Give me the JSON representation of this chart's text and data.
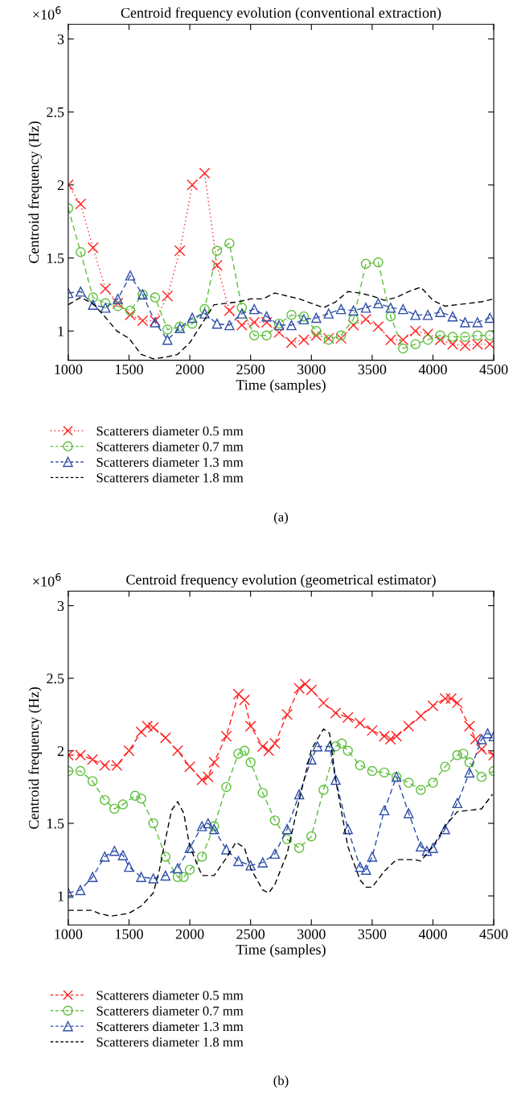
{
  "chart_data": [
    {
      "type": "line",
      "title": "Centroid frequency evolution (conventional extraction)",
      "xlabel": "Time (samples)",
      "ylabel": "Centroid frequency (Hz)",
      "annotations": [
        "×10$^{6}$",
        "(a)"
      ],
      "xlim": [
        1000,
        4500
      ],
      "xticks": [
        1000,
        1500,
        2000,
        2500,
        3000,
        3500,
        4000,
        4500
      ],
      "ylim": [
        0.8,
        3.1
      ],
      "yticks": [
        1,
        1.5,
        2,
        2.5,
        3
      ],
      "grid": false,
      "legend": "bottom",
      "x": [
        1000,
        1102,
        1204,
        1306,
        1408,
        1510,
        1612,
        1714,
        1816,
        1918,
        2020,
        2122,
        2224,
        2326,
        2428,
        2530,
        2632,
        2734,
        2836,
        2938,
        3040,
        3142,
        3244,
        3346,
        3448,
        3550,
        3652,
        3754,
        3856,
        3958,
        4060,
        4162,
        4264,
        4366,
        4468
      ],
      "series": [
        {
          "name": "Scatterers diameter 0.5 mm",
          "color": "#ff2020",
          "marker": "cross",
          "line_style": "dotted",
          "values": [
            2.0,
            1.87,
            1.57,
            1.29,
            1.19,
            1.11,
            1.07,
            1.07,
            1.24,
            1.55,
            2.0,
            2.08,
            1.45,
            1.14,
            1.04,
            1.06,
            1.06,
            0.99,
            0.92,
            0.94,
            0.97,
            0.95,
            0.95,
            1.04,
            1.08,
            1.03,
            0.94,
            0.94,
            1.0,
            0.98,
            0.94,
            0.91,
            0.9,
            0.91,
            0.91
          ]
        },
        {
          "name": "Scatterers diameter 0.7 mm",
          "color": "#5cbf3a",
          "marker": "circle",
          "line_style": "dashed",
          "values": [
            1.84,
            1.54,
            1.23,
            1.19,
            1.17,
            1.14,
            1.25,
            1.23,
            1.01,
            1.03,
            1.05,
            1.15,
            1.55,
            1.6,
            1.16,
            0.97,
            0.97,
            1.05,
            1.11,
            1.1,
            1.0,
            0.94,
            0.97,
            1.08,
            1.46,
            1.47,
            1.1,
            0.88,
            0.91,
            0.94,
            0.97,
            0.96,
            0.96,
            0.97,
            0.97
          ]
        },
        {
          "name": "Scatterers diameter 1.3 mm",
          "color": "#2f4fa8",
          "marker": "triangle",
          "line_style": "dashed",
          "values": [
            1.26,
            1.27,
            1.18,
            1.16,
            1.22,
            1.38,
            1.25,
            1.06,
            0.94,
            1.02,
            1.09,
            1.12,
            1.05,
            1.04,
            1.12,
            1.15,
            1.1,
            1.04,
            1.04,
            1.08,
            1.09,
            1.12,
            1.15,
            1.14,
            1.16,
            1.19,
            1.16,
            1.15,
            1.11,
            1.11,
            1.13,
            1.1,
            1.06,
            1.06,
            1.09
          ]
        },
        {
          "name": "Scatterers diameter 1.8 mm",
          "color": "#000000",
          "marker": "none",
          "line_style": "dashed",
          "x": [
            1000,
            1100,
            1200,
            1300,
            1400,
            1500,
            1600,
            1700,
            1800,
            1900,
            2000,
            2100,
            2200,
            2300,
            2400,
            2500,
            2600,
            2700,
            2800,
            2900,
            3000,
            3100,
            3200,
            3300,
            3400,
            3500,
            3600,
            3700,
            3800,
            3900,
            4000,
            4100,
            4200,
            4300,
            4400,
            4500
          ],
          "values": [
            1.18,
            1.23,
            1.19,
            1.1,
            1.0,
            0.95,
            0.84,
            0.81,
            0.82,
            0.84,
            0.92,
            1.05,
            1.18,
            1.19,
            1.2,
            1.22,
            1.22,
            1.26,
            1.24,
            1.22,
            1.19,
            1.16,
            1.2,
            1.27,
            1.26,
            1.24,
            1.21,
            1.23,
            1.27,
            1.3,
            1.21,
            1.17,
            1.18,
            1.19,
            1.2,
            1.22
          ]
        }
      ]
    },
    {
      "type": "line",
      "title": "Centroid frequency evolution (geometrical estimator)",
      "xlabel": "Time (samples)",
      "ylabel": "Centroid frequency (Hz)",
      "annotations": [
        "×10$^{6}$",
        "(b)"
      ],
      "xlim": [
        1000,
        4500
      ],
      "xticks": [
        1000,
        1500,
        2000,
        2500,
        3000,
        3500,
        4000,
        4500
      ],
      "ylim": [
        0.8,
        3.1
      ],
      "yticks": [
        1,
        1.5,
        2,
        2.5,
        3
      ],
      "grid": false,
      "legend": "bottom",
      "series": [
        {
          "name": "Scatterers diameter 0.5 mm",
          "color": "#ff2020",
          "marker": "cross",
          "line_style": "dashed",
          "x": [
            1000,
            1100,
            1200,
            1300,
            1400,
            1500,
            1600,
            1650,
            1700,
            1800,
            1900,
            2000,
            2100,
            2150,
            2200,
            2300,
            2400,
            2450,
            2500,
            2600,
            2650,
            2700,
            2800,
            2900,
            2950,
            3000,
            3100,
            3200,
            3300,
            3400,
            3500,
            3600,
            3650,
            3700,
            3800,
            3900,
            4000,
            4100,
            4150,
            4200,
            4300,
            4350,
            4400,
            4500
          ],
          "values": [
            1.97,
            1.97,
            1.94,
            1.9,
            1.9,
            2.0,
            2.13,
            2.17,
            2.16,
            2.09,
            2.0,
            1.89,
            1.8,
            1.82,
            1.92,
            2.1,
            2.39,
            2.35,
            2.17,
            2.03,
            2.0,
            2.05,
            2.25,
            2.43,
            2.46,
            2.42,
            2.33,
            2.26,
            2.23,
            2.19,
            2.14,
            2.1,
            2.08,
            2.1,
            2.17,
            2.24,
            2.31,
            2.36,
            2.36,
            2.33,
            2.17,
            2.08,
            2.01,
            1.97
          ]
        },
        {
          "name": "Scatterers diameter 0.7 mm",
          "color": "#5cbf3a",
          "marker": "circle",
          "line_style": "dashed",
          "x": [
            1000,
            1100,
            1200,
            1300,
            1380,
            1450,
            1550,
            1600,
            1700,
            1800,
            1900,
            1950,
            2000,
            2100,
            2200,
            2300,
            2400,
            2450,
            2500,
            2600,
            2700,
            2800,
            2900,
            3000,
            3100,
            3200,
            3250,
            3300,
            3400,
            3500,
            3600,
            3700,
            3800,
            3900,
            4000,
            4100,
            4200,
            4250,
            4300,
            4400,
            4500
          ],
          "values": [
            1.86,
            1.86,
            1.79,
            1.66,
            1.6,
            1.63,
            1.69,
            1.67,
            1.5,
            1.27,
            1.13,
            1.13,
            1.18,
            1.27,
            1.48,
            1.75,
            1.98,
            2.0,
            1.92,
            1.71,
            1.52,
            1.39,
            1.33,
            1.41,
            1.73,
            2.03,
            2.05,
            2.0,
            1.9,
            1.86,
            1.85,
            1.82,
            1.78,
            1.73,
            1.78,
            1.89,
            1.97,
            1.98,
            1.92,
            1.82,
            1.86
          ]
        },
        {
          "name": "Scatterers diameter 1.3 mm",
          "color": "#2f4fa8",
          "marker": "triangle",
          "line_style": "dashed",
          "x": [
            1000,
            1100,
            1200,
            1300,
            1380,
            1450,
            1500,
            1600,
            1700,
            1800,
            1900,
            2000,
            2100,
            2150,
            2200,
            2300,
            2400,
            2500,
            2600,
            2700,
            2800,
            2900,
            3000,
            3050,
            3150,
            3200,
            3300,
            3400,
            3450,
            3500,
            3600,
            3700,
            3800,
            3900,
            3950,
            4000,
            4100,
            4200,
            4300,
            4400,
            4450,
            4500
          ],
          "values": [
            1.02,
            1.04,
            1.13,
            1.27,
            1.31,
            1.28,
            1.2,
            1.13,
            1.12,
            1.14,
            1.19,
            1.33,
            1.48,
            1.5,
            1.46,
            1.32,
            1.24,
            1.21,
            1.23,
            1.29,
            1.46,
            1.7,
            1.94,
            2.03,
            2.03,
            1.8,
            1.46,
            1.2,
            1.18,
            1.27,
            1.59,
            1.82,
            1.57,
            1.34,
            1.31,
            1.33,
            1.46,
            1.64,
            1.85,
            2.08,
            2.12,
            2.1
          ]
        },
        {
          "name": "Scatterers diameter 1.8 mm",
          "color": "#000000",
          "marker": "none",
          "line_style": "dashed",
          "x": [
            1000,
            1200,
            1250,
            1350,
            1500,
            1600,
            1700,
            1750,
            1800,
            1850,
            1900,
            1950,
            2000,
            2100,
            2200,
            2300,
            2380,
            2450,
            2500,
            2600,
            2650,
            2700,
            2800,
            2900,
            3000,
            3100,
            3150,
            3200,
            3300,
            3400,
            3450,
            3500,
            3600,
            3700,
            3850,
            3900,
            4000,
            4100,
            4200,
            4300,
            4400,
            4490
          ],
          "values": [
            0.9,
            0.9,
            0.88,
            0.86,
            0.88,
            0.93,
            1.02,
            1.18,
            1.39,
            1.59,
            1.65,
            1.57,
            1.34,
            1.14,
            1.14,
            1.26,
            1.37,
            1.33,
            1.19,
            1.04,
            1.02,
            1.08,
            1.29,
            1.66,
            2.01,
            2.15,
            2.12,
            1.8,
            1.34,
            1.11,
            1.06,
            1.06,
            1.17,
            1.25,
            1.25,
            1.24,
            1.34,
            1.48,
            1.58,
            1.59,
            1.6,
            1.7
          ]
        }
      ]
    }
  ]
}
